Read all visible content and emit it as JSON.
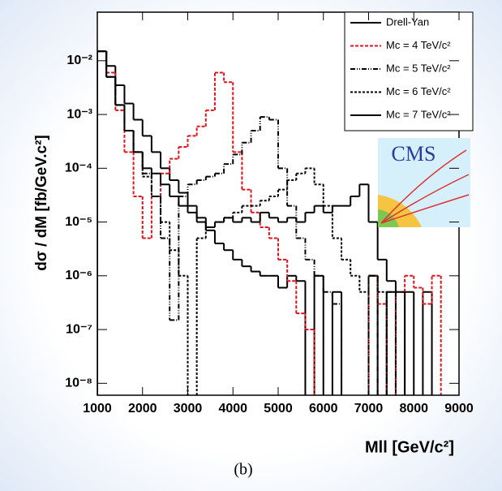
{
  "chart_data": {
    "type": "histogram",
    "y_label": "dσ / dM [fb/GeV.c²]",
    "x_label": "Mll [GeV/c²]",
    "caption": "(b)",
    "logo_text": "CMS",
    "log_y": true,
    "bins": [
      1000,
      1200,
      1400,
      1600,
      1800,
      2000,
      2200,
      2400,
      2600,
      2800,
      3000,
      3200,
      3400,
      3600,
      3800,
      4000,
      4200,
      4400,
      4600,
      4800,
      5000,
      5200,
      5400,
      5600,
      5800,
      6000,
      6200,
      6400,
      6600,
      6800,
      7000,
      7200,
      7400,
      7600,
      7800,
      8000,
      8200,
      8400,
      8600,
      8800,
      9000
    ],
    "xlim": [
      1000,
      9000
    ],
    "xticks": [
      1000,
      2000,
      3000,
      4000,
      5000,
      6000,
      7000,
      8000,
      9000
    ],
    "ylim": [
      6e-09,
      0.08
    ],
    "yticks": [
      {
        "value": 1e-08,
        "label": "10⁻⁸"
      },
      {
        "value": 1e-07,
        "label": "10⁻⁷"
      },
      {
        "value": 1e-06,
        "label": "10⁻⁶"
      },
      {
        "value": 1e-05,
        "label": "10⁻⁵"
      },
      {
        "value": 0.0001,
        "label": "10⁻⁴"
      },
      {
        "value": 0.001,
        "label": "10⁻³"
      },
      {
        "value": 0.01,
        "label": "10⁻²"
      }
    ],
    "series": [
      {
        "name": "Drell-Yan",
        "color": "#000000",
        "dash": "none",
        "values": [
          0.015,
          0.008,
          0.0035,
          0.0016,
          0.0008,
          0.0004,
          0.0002,
          0.0001,
          6e-05,
          3.5e-05,
          2e-05,
          1.2e-05,
          7e-06,
          4e-06,
          3e-06,
          2e-06,
          1.5e-06,
          1.2e-06,
          1e-06,
          1e-06,
          6e-07,
          1e-06,
          8e-07,
          null,
          1e-06,
          null,
          5e-07,
          null,
          null,
          null,
          1e-06,
          null,
          5e-07,
          null,
          5e-07,
          null,
          5e-07,
          null,
          null,
          null
        ]
      },
      {
        "name": "Mc = 4 TeV/c²",
        "color": "#e0141e",
        "dash": "4 2",
        "values": [
          0.015,
          0.006,
          0.0012,
          0.0002,
          3e-05,
          5e-06,
          3e-05,
          8e-05,
          0.00015,
          0.00025,
          0.0004,
          0.0006,
          0.0012,
          0.006,
          0.004,
          0.0002,
          4e-05,
          1.5e-05,
          8e-06,
          5e-06,
          2e-06,
          8e-07,
          2e-07,
          1e-07,
          null,
          null,
          null,
          null,
          null,
          null,
          1e-06,
          3e-07,
          null,
          5e-07,
          1e-06,
          6e-07,
          3e-07,
          1e-06,
          null,
          null
        ]
      },
      {
        "name": "Mc = 5 TeV/c²",
        "color": "#000000",
        "dash": "6 2 1 2 1 2",
        "values": [
          0.015,
          0.005,
          0.0015,
          0.0005,
          0.0002,
          8e-05,
          3e-05,
          5e-06,
          1.5e-07,
          3e-05,
          5e-05,
          6e-05,
          7e-05,
          8e-05,
          0.00012,
          0.00018,
          0.0003,
          0.0005,
          0.0009,
          0.0008,
          0.0001,
          2e-05,
          5e-06,
          2e-06,
          1e-06,
          5e-07,
          3e-07,
          null,
          null,
          null,
          1e-06,
          null,
          5e-07,
          null,
          null,
          null,
          null,
          null,
          null,
          null
        ]
      },
      {
        "name": "Mc = 6 TeV/c²",
        "color": "#000000",
        "dash": "3 2",
        "values": [
          0.015,
          0.005,
          0.0015,
          0.0005,
          0.0002,
          7e-05,
          3e-05,
          1e-05,
          3e-06,
          1e-06,
          null,
          5e-06,
          8e-06,
          1e-05,
          1.2e-05,
          1.5e-05,
          2e-05,
          2e-05,
          2.5e-05,
          3e-05,
          4e-05,
          6e-05,
          8e-05,
          0.0001,
          5e-05,
          2e-05,
          5e-06,
          2e-06,
          1e-06,
          5e-07,
          1e-06,
          5e-07,
          null,
          null,
          null,
          null,
          null,
          null,
          null,
          null
        ]
      },
      {
        "name": "Mc = 7 TeV/c²",
        "color": "#000000",
        "dash": "none",
        "values": [
          0.015,
          0.005,
          0.0015,
          0.0005,
          0.0002,
          0.0001,
          8e-05,
          5e-05,
          3e-05,
          2e-05,
          1.5e-05,
          1e-05,
          8e-06,
          1e-05,
          1.2e-05,
          1e-05,
          1.2e-05,
          1e-05,
          1.5e-05,
          1.2e-05,
          1e-05,
          1.2e-05,
          1e-05,
          1.5e-05,
          2e-05,
          1.5e-05,
          2e-05,
          2e-05,
          3e-05,
          5e-05,
          1e-05,
          2e-06,
          8e-07,
          5e-07,
          null,
          null,
          null,
          null,
          null,
          null
        ]
      }
    ]
  }
}
